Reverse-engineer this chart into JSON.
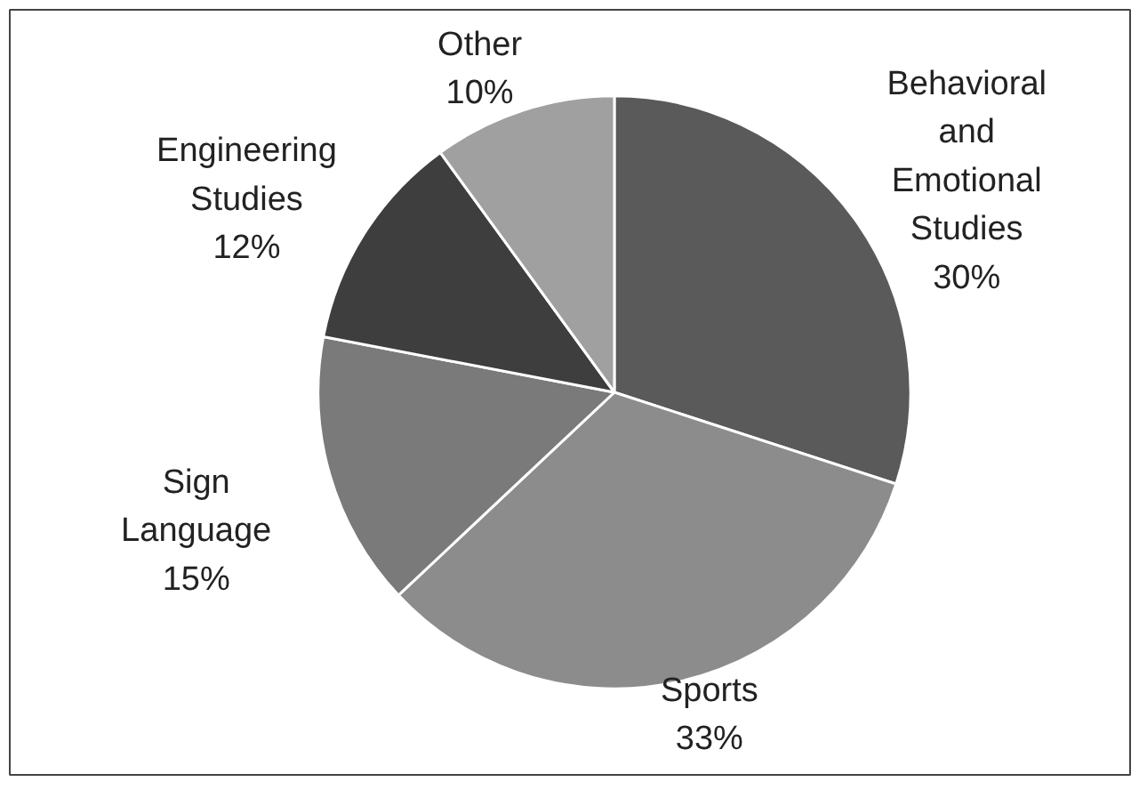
{
  "chart_data": {
    "type": "pie",
    "categories": [
      "Behavioral and Emotional Studies",
      "Sports",
      "Sign Language",
      "Engineering Studies",
      "Other"
    ],
    "values": [
      30,
      33,
      15,
      12,
      10
    ],
    "value_labels": [
      "30%",
      "33%",
      "15%",
      "12%",
      "10%"
    ],
    "colors": [
      "#5a5a5a",
      "#8c8c8c",
      "#7a7a7a",
      "#3e3e3e",
      "#a0a0a0"
    ]
  }
}
